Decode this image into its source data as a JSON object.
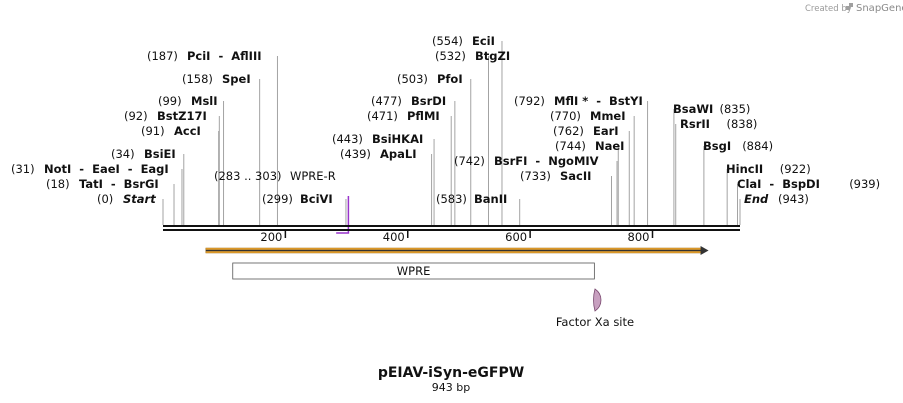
{
  "header": {
    "credit": "Created by",
    "brand": "SnapGene"
  },
  "plasmid": {
    "name": "pEIAV-iSyn-eGFPW",
    "size_label": "943 bp",
    "length": 943
  },
  "ruler": {
    "ticks": [
      {
        "pos": 200,
        "label": "200"
      },
      {
        "pos": 400,
        "label": "400"
      },
      {
        "pos": 600,
        "label": "600"
      },
      {
        "pos": 800,
        "label": "800"
      }
    ]
  },
  "sites": [
    {
      "pos": 0,
      "pos_label": "(0)",
      "enzyme": "Start",
      "italic": true
    },
    {
      "pos": 18,
      "pos_label": "(18)",
      "enzyme": "TatI  -  BsrGI"
    },
    {
      "pos": 31,
      "pos_label": "(31)",
      "enzyme": "NotI  -  EaeI  -  EagI"
    },
    {
      "pos": 34,
      "pos_label": "(34)",
      "enzyme": "BsiEI"
    },
    {
      "pos": 91,
      "pos_label": "(91)",
      "enzyme": "AccI"
    },
    {
      "pos": 92,
      "pos_label": "(92)",
      "enzyme": "BstZ17I"
    },
    {
      "pos": 99,
      "pos_label": "(99)",
      "enzyme": "MslI"
    },
    {
      "pos": 158,
      "pos_label": "(158)",
      "enzyme": "SpeI"
    },
    {
      "pos": 187,
      "pos_label": "(187)",
      "enzyme": "PciI  -  AflIII"
    },
    {
      "pos": 299,
      "pos_label": "(299)",
      "enzyme": "BciVI"
    },
    {
      "pos": 439,
      "pos_label": "(439)",
      "enzyme": "ApaLI"
    },
    {
      "pos": 443,
      "pos_label": "(443)",
      "enzyme": "BsiHKAI"
    },
    {
      "pos": 471,
      "pos_label": "(471)",
      "enzyme": "PflMI"
    },
    {
      "pos": 477,
      "pos_label": "(477)",
      "enzyme": "BsrDI"
    },
    {
      "pos": 503,
      "pos_label": "(503)",
      "enzyme": "PfoI"
    },
    {
      "pos": 532,
      "pos_label": "(532)",
      "enzyme": "BtgZI"
    },
    {
      "pos": 554,
      "pos_label": "(554)",
      "enzyme": "EciI"
    },
    {
      "pos": 583,
      "pos_label": "(583)",
      "enzyme": "BanII"
    },
    {
      "pos": 733,
      "pos_label": "(733)",
      "enzyme": "SacII"
    },
    {
      "pos": 742,
      "pos_label": "(742)",
      "enzyme": "BsrFI  -  NgoMIV"
    },
    {
      "pos": 744,
      "pos_label": "(744)",
      "enzyme": "NaeI"
    },
    {
      "pos": 762,
      "pos_label": "(762)",
      "enzyme": "EarI"
    },
    {
      "pos": 770,
      "pos_label": "(770)",
      "enzyme": "MmeI"
    },
    {
      "pos": 792,
      "pos_label": "(792)",
      "enzyme": "MflI *  -  BstYI"
    },
    {
      "pos": 835,
      "pos_label": "(835)",
      "enzyme": "BsaWI"
    },
    {
      "pos": 838,
      "pos_label": "(838)",
      "enzyme": "RsrII"
    },
    {
      "pos": 884,
      "pos_label": "(884)",
      "enzyme": "BsgI"
    },
    {
      "pos": 922,
      "pos_label": "(922)",
      "enzyme": "HincII"
    },
    {
      "pos": 939,
      "pos_label": "(939)",
      "enzyme": "ClaI  -  BspDI"
    },
    {
      "pos": 943,
      "pos_label": "(943)",
      "enzyme": "End",
      "italic": true
    }
  ],
  "primer": {
    "name": "WPRE-R",
    "range_label": "(283 .. 303)",
    "start": 283,
    "end": 303,
    "color": "#9933cc"
  },
  "orf": {
    "start": 70,
    "end": 890,
    "color": "#f0a830"
  },
  "feature": {
    "name": "WPRE",
    "start": 114,
    "end": 705
  },
  "site_feature": {
    "name": "Factor Xa site",
    "pos": 706,
    "color": "#c8a0c0"
  },
  "colors": {
    "backbone": "#111111",
    "site_line": "#999999"
  }
}
